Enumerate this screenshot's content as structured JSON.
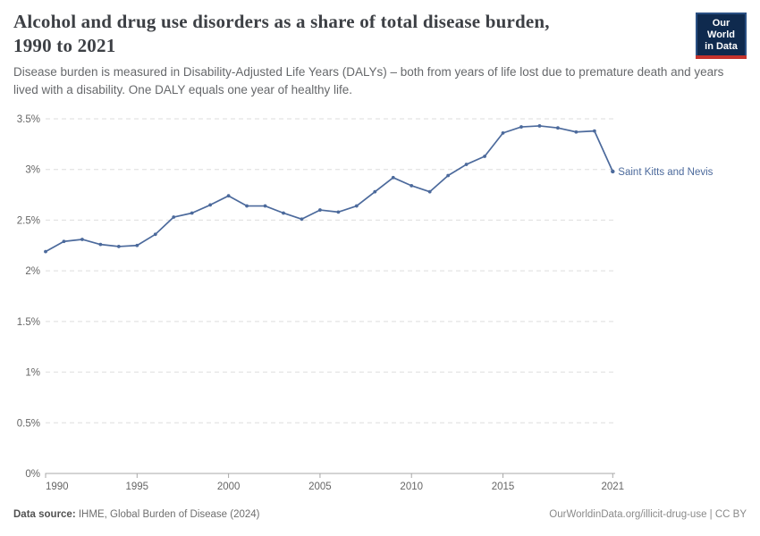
{
  "header": {
    "title_line1": "Alcohol and drug use disorders as a share of total disease burden,",
    "title_line2": "1990 to 2021",
    "subtitle": "Disease burden is measured in Disability-Adjusted Life Years (DALYs) – both from years of life lost due to premature death and years lived with a disability. One DALY equals one year of healthy life.",
    "logo": {
      "line1": "Our World",
      "line2": "in Data"
    }
  },
  "chart_data": {
    "type": "line",
    "title": "Alcohol and drug use disorders as a share of total disease burden, 1990 to 2021",
    "x": [
      1990,
      1991,
      1992,
      1993,
      1994,
      1995,
      1996,
      1997,
      1998,
      1999,
      2000,
      2001,
      2002,
      2003,
      2004,
      2005,
      2006,
      2007,
      2008,
      2009,
      2010,
      2011,
      2012,
      2013,
      2014,
      2015,
      2016,
      2017,
      2018,
      2019,
      2020,
      2021
    ],
    "series": [
      {
        "name": "Saint Kitts and Nevis",
        "color": "#4c6a9c",
        "values": [
          2.19,
          2.29,
          2.31,
          2.26,
          2.24,
          2.25,
          2.36,
          2.53,
          2.57,
          2.65,
          2.74,
          2.64,
          2.64,
          2.57,
          2.51,
          2.6,
          2.58,
          2.64,
          2.78,
          2.92,
          2.84,
          2.78,
          2.94,
          3.05,
          3.13,
          3.36,
          3.42,
          3.43,
          3.41,
          3.37,
          3.38,
          2.98
        ]
      }
    ],
    "unit": "%",
    "xlim": [
      1990,
      2021
    ],
    "ylim": [
      0,
      3.5
    ],
    "grid": "dashed-horizontal",
    "legend_position": "line-end-label",
    "y_ticks": {
      "values": [
        0,
        0.5,
        1,
        1.5,
        2,
        2.5,
        3,
        3.5
      ],
      "labels": [
        "0%",
        "0.5%",
        "1%",
        "1.5%",
        "2%",
        "2.5%",
        "3%",
        "3.5%"
      ]
    },
    "x_ticks": {
      "values": [
        1990,
        1995,
        2000,
        2005,
        2010,
        2015,
        2021
      ],
      "labels": [
        "1990",
        "1995",
        "2000",
        "2005",
        "2010",
        "2015",
        "2021"
      ]
    }
  },
  "colors": {
    "line": "#4c6a9c",
    "gridline": "#dedede",
    "axis": "#a8a8a8",
    "tick_label": "#666666"
  },
  "footer": {
    "source_label": "Data source:",
    "source_text": " IHME, Global Burden of Disease (2024)",
    "link_text": "OurWorldinData.org/illicit-drug-use | CC BY"
  }
}
